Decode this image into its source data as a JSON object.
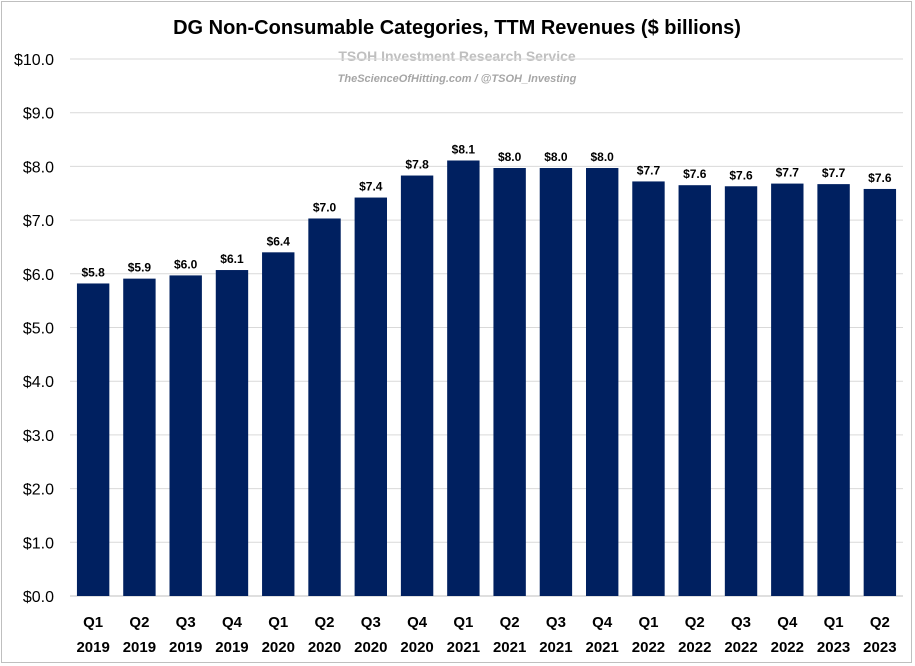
{
  "chart_data": {
    "type": "bar",
    "title": "DG Non-Consumable Categories, TTM Revenues ($ billions)",
    "watermark": {
      "line1": "TSOH Investment Research Service",
      "line2": "TheScienceOfHitting.com / @TSOH_Investing"
    },
    "categories": [
      [
        "Q1",
        "2019"
      ],
      [
        "Q2",
        "2019"
      ],
      [
        "Q3",
        "2019"
      ],
      [
        "Q4",
        "2019"
      ],
      [
        "Q1",
        "2020"
      ],
      [
        "Q2",
        "2020"
      ],
      [
        "Q3",
        "2020"
      ],
      [
        "Q4",
        "2020"
      ],
      [
        "Q1",
        "2021"
      ],
      [
        "Q2",
        "2021"
      ],
      [
        "Q3",
        "2021"
      ],
      [
        "Q4",
        "2021"
      ],
      [
        "Q1",
        "2022"
      ],
      [
        "Q2",
        "2022"
      ],
      [
        "Q3",
        "2022"
      ],
      [
        "Q4",
        "2022"
      ],
      [
        "Q1",
        "2023"
      ],
      [
        "Q2",
        "2023"
      ]
    ],
    "values": [
      5.82,
      5.91,
      5.97,
      6.07,
      6.4,
      7.03,
      7.42,
      7.83,
      8.11,
      7.97,
      7.97,
      7.97,
      7.72,
      7.65,
      7.63,
      7.68,
      7.67,
      7.58
    ],
    "data_labels": [
      "$5.8",
      "$5.9",
      "$6.0",
      "$6.1",
      "$6.4",
      "$7.0",
      "$7.4",
      "$7.8",
      "$8.1",
      "$8.0",
      "$8.0",
      "$8.0",
      "$7.7",
      "$7.6",
      "$7.6",
      "$7.7",
      "$7.7",
      "$7.6"
    ],
    "yticks": [
      "$0.0",
      "$1.0",
      "$2.0",
      "$3.0",
      "$4.0",
      "$5.0",
      "$6.0",
      "$7.0",
      "$8.0",
      "$9.0",
      "$10.0"
    ],
    "ylim": [
      0,
      10
    ],
    "grid": true,
    "bar_color": "#002060",
    "xlabel": "",
    "ylabel": ""
  }
}
